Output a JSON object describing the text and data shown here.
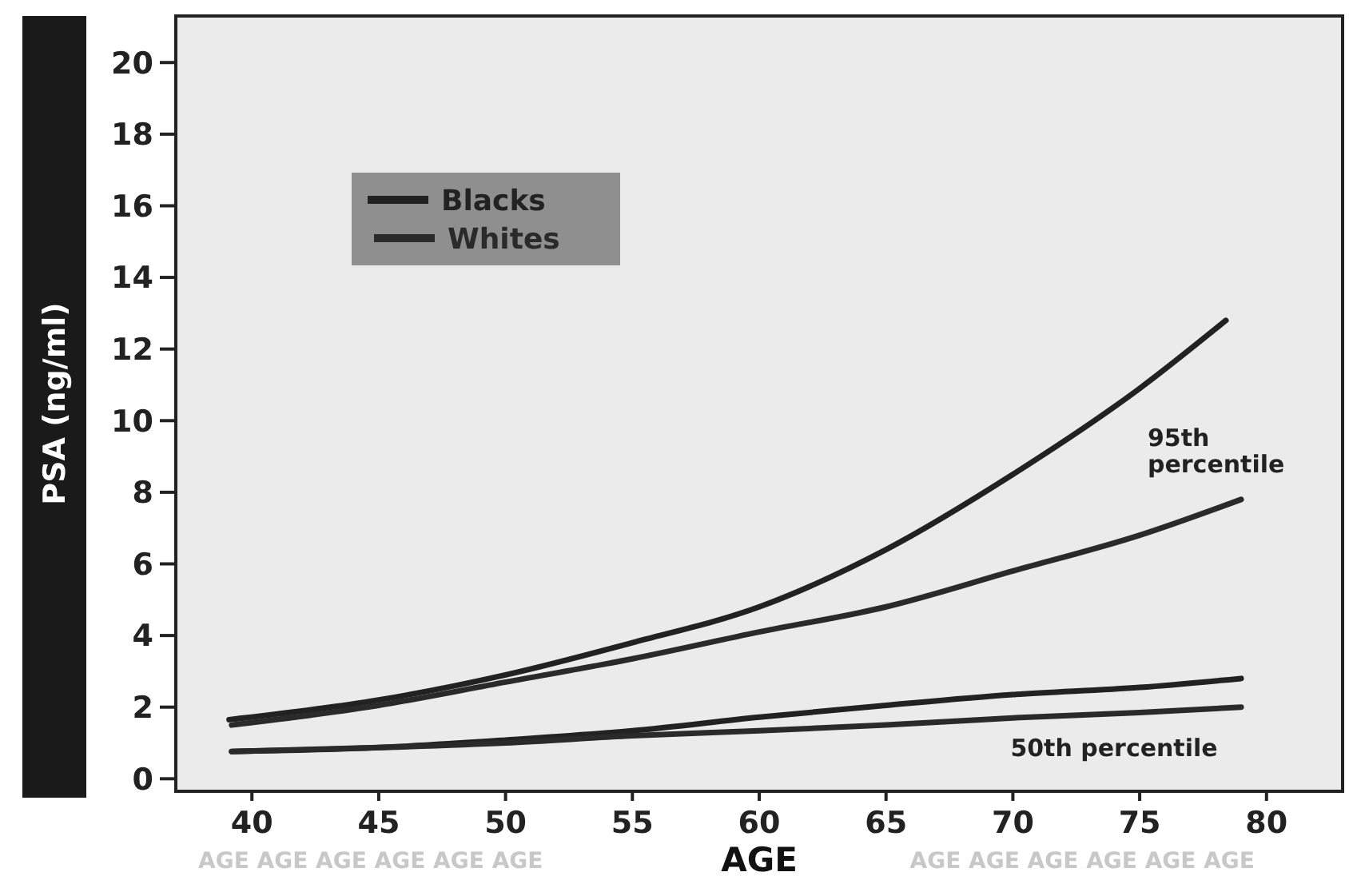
{
  "chart_data": {
    "type": "line",
    "xlabel": "AGE",
    "ylabel": "PSA (ng/ml)",
    "xlim": [
      37,
      83
    ],
    "ylim": [
      -0.35,
      21.3
    ],
    "xticks": [
      40,
      45,
      50,
      55,
      60,
      65,
      70,
      75,
      80
    ],
    "yticks": [
      0,
      2,
      4,
      6,
      8,
      10,
      12,
      14,
      16,
      18,
      20
    ],
    "grid": false,
    "legend": "top left",
    "line_style": "solid",
    "marker": "none",
    "series": [
      {
        "name": "Blacks",
        "color": "#222222",
        "x": [
          39.1,
          45,
          50,
          55,
          60,
          65,
          70,
          75,
          78.4
        ],
        "values": [
          1.65,
          2.2,
          2.9,
          3.8,
          4.8,
          6.4,
          8.5,
          10.9,
          12.8
        ]
      },
      {
        "name": "Whites",
        "color": "#2a2a2a",
        "x": [
          39.2,
          45,
          50,
          55,
          60,
          65,
          70,
          75,
          79
        ],
        "values": [
          1.5,
          2.05,
          2.7,
          3.35,
          4.1,
          4.8,
          5.8,
          6.8,
          7.8
        ]
      },
      {
        "color": "#222222",
        "x": [
          39.2,
          45,
          50,
          55,
          60,
          65,
          70,
          75,
          79
        ],
        "values": [
          0.76,
          0.87,
          1.08,
          1.34,
          1.72,
          2.05,
          2.35,
          2.55,
          2.8
        ]
      },
      {
        "color": "#2a2a2a",
        "x": [
          39.2,
          45,
          50,
          55,
          60,
          65,
          70,
          75,
          79
        ],
        "values": [
          0.76,
          0.87,
          1.0,
          1.2,
          1.34,
          1.5,
          1.7,
          1.85,
          2.0
        ]
      }
    ],
    "annotations": [
      "95th percentile",
      "50th percentile",
      "AGE AGE AGE AGE AGE AGE",
      "AGE AGE AGE AGE AGE AGE"
    ]
  }
}
